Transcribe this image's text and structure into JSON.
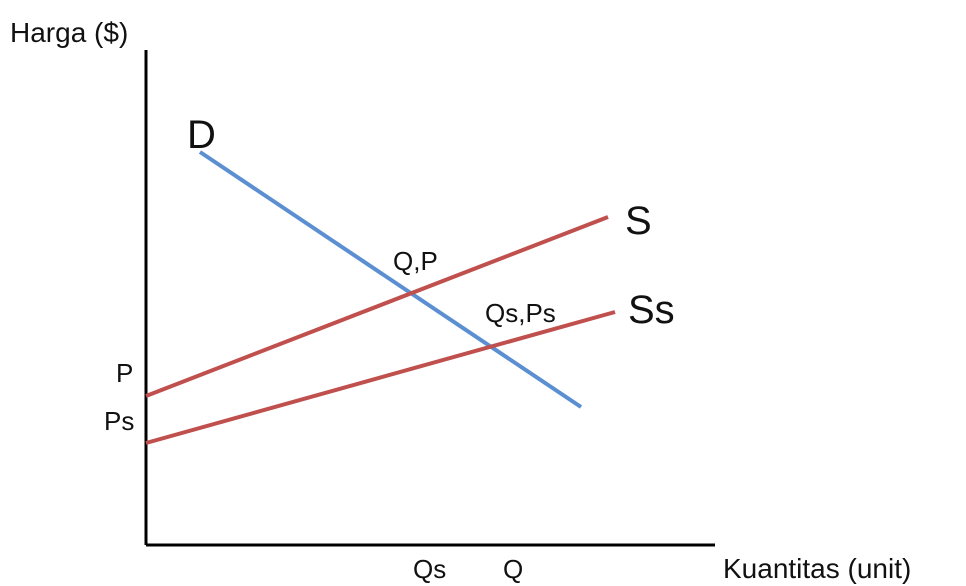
{
  "chart_data": {
    "type": "line",
    "ylabel": "Harga ($)",
    "xlabel": "Kuantitas (unit)",
    "y_ticks": [
      "P",
      "Ps"
    ],
    "x_ticks": [
      "Qs",
      "Q"
    ],
    "series": [
      {
        "name": "D",
        "color": "#5b8fd1"
      },
      {
        "name": "S",
        "color": "#c0504d"
      },
      {
        "name": "Ss",
        "color": "#c0504d"
      }
    ],
    "annotations": {
      "eq1": "Q,P",
      "eq2": "Qs,Ps"
    },
    "axis_color": "#000000"
  }
}
